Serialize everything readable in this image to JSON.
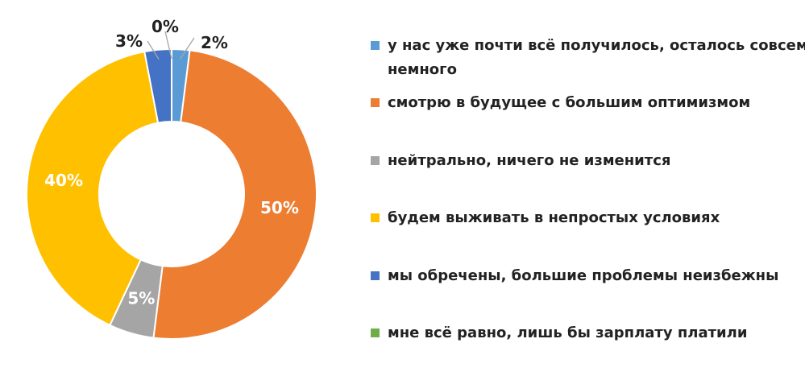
{
  "chart_data": {
    "type": "pie",
    "variant": "donut",
    "categories": [
      "у нас уже почти всё получилось, осталось совсем немного",
      "смотрю в будущее с большим оптимизмом",
      "нейтрально, ничего не изменится",
      "будем выживать в непростых условиях",
      "мы обречены, большие проблемы неизбежны",
      "мне всё равно, лишь бы зарплату платили"
    ],
    "values": [
      2,
      50,
      5,
      40,
      3,
      0
    ],
    "data_labels": [
      "2%",
      "50%",
      "5%",
      "40%",
      "3%",
      "0%"
    ],
    "colors": [
      "#5b9bd5",
      "#ed7d31",
      "#a5a5a5",
      "#ffc000",
      "#4472c4",
      "#70ad47"
    ],
    "legend_position": "right"
  }
}
